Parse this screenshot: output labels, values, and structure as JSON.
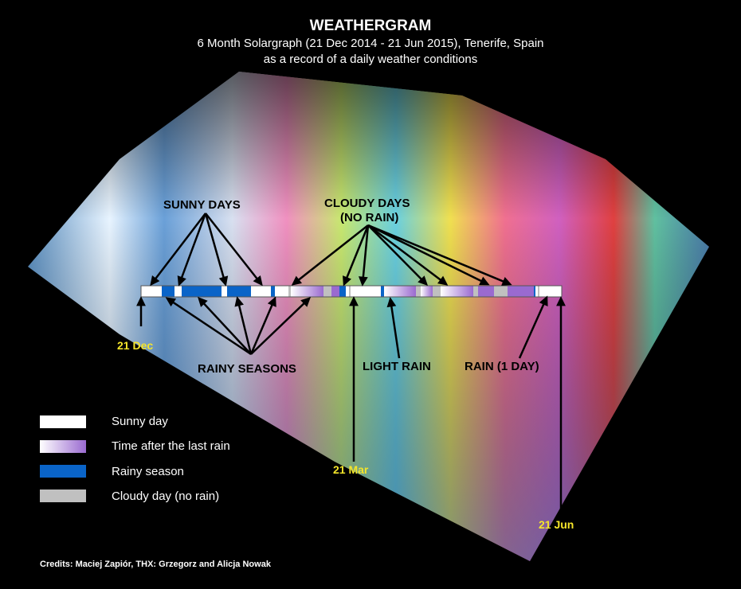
{
  "header": {
    "title": "WEATHERGRAM",
    "subtitle_line1": "6 Month Solargraph (21 Dec 2014 - 21 Jun 2015), Tenerife, Spain",
    "subtitle_line2": "as a record of a daily weather conditions"
  },
  "annotations": {
    "sunny_days": "SUNNY DAYS",
    "cloudy_days_line1": "CLOUDY DAYS",
    "cloudy_days_line2": "(NO RAIN)",
    "rainy_seasons": "RAINY SEASONS",
    "light_rain": "LIGHT RAIN",
    "rain_one_day": "RAIN (1 DAY)"
  },
  "dates": {
    "start": "21 Dec",
    "equinox": "21 Mar",
    "end": "21 Jun"
  },
  "legend": [
    {
      "label": "Sunny day",
      "color": "#ffffff"
    },
    {
      "label": "Time after the last rain",
      "color": "#9a6ad0"
    },
    {
      "label": "Rainy season",
      "color": "#0a64c8"
    },
    {
      "label": "Cloudy day (no rain)",
      "color": "#c0c0c0"
    }
  ],
  "credits": "Credits: Maciej Zapiór, THX: Grzegorz and Alicja Nowak",
  "timeline_segments": [
    "sunny",
    "rain",
    "sunny",
    "rain",
    "sunny",
    "rain",
    "sunny",
    "rain",
    "sunny",
    "cloudy",
    "after-rain",
    "cloudy",
    "after-rain-end",
    "rain",
    "sunny",
    "cloudy",
    "sunny",
    "rain",
    "after-rain",
    "cloudy",
    "after-rain",
    "cloudy",
    "after-rain",
    "cloudy",
    "after-rain-end",
    "cloudy",
    "after-rain-end",
    "rain",
    "sunny",
    "cloudy",
    "sunny"
  ]
}
